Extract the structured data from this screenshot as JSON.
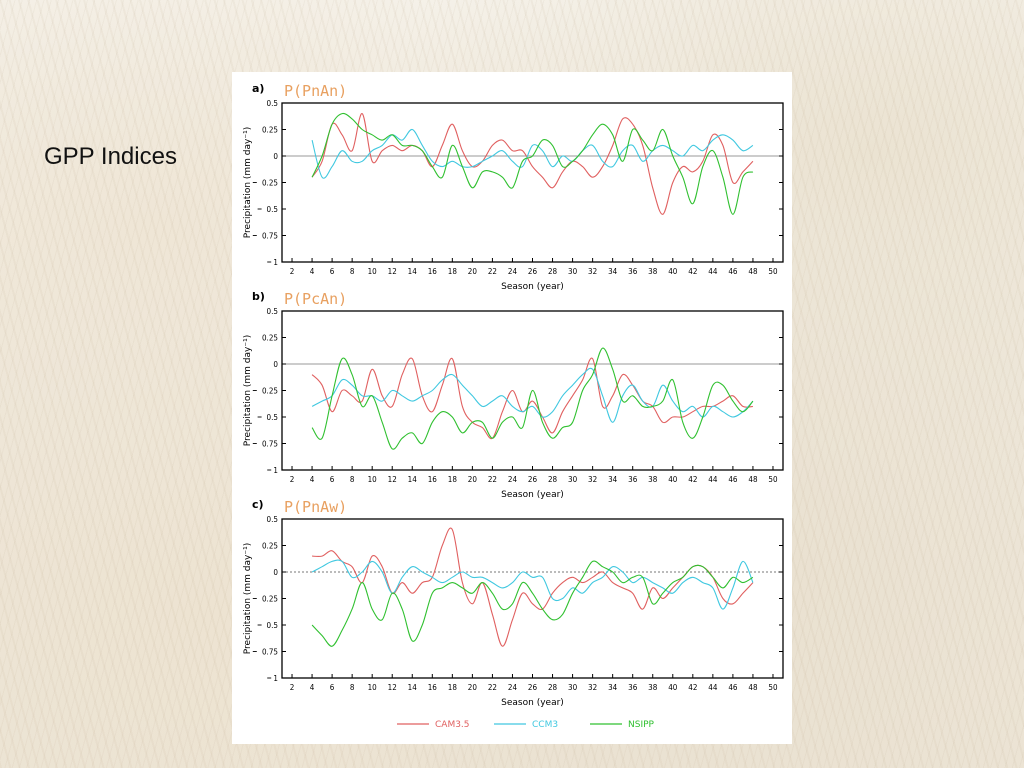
{
  "slide": {
    "title": "GPP Indices"
  },
  "colors": {
    "CAM3.5": "#e06060",
    "CCM3": "#40c8e0",
    "NSIPP": "#30c030",
    "panel_title": "#e8a060"
  },
  "chart_data": [
    {
      "type": "line",
      "panel_label": "a)",
      "title": "P(PnAn)",
      "xlabel": "Season (year)",
      "ylabel": "Precipitation (mm day⁻¹)",
      "xlim": [
        1,
        51
      ],
      "ylim": [
        -1,
        0.5
      ],
      "xticks": [
        2,
        4,
        6,
        8,
        10,
        12,
        14,
        16,
        18,
        20,
        22,
        24,
        26,
        28,
        30,
        32,
        34,
        36,
        38,
        40,
        42,
        44,
        46,
        48,
        50
      ],
      "yticks": [
        0.5,
        0.25,
        0,
        -0.25,
        -0.5,
        -0.75,
        -1
      ],
      "ytick_labels": [
        "0.5",
        "0.25",
        "0",
        "0.25",
        "0.5",
        "0.75",
        "1"
      ],
      "zero_line": "solid",
      "x": [
        4,
        5,
        6,
        7,
        8,
        9,
        10,
        11,
        12,
        13,
        14,
        15,
        16,
        17,
        18,
        19,
        20,
        21,
        22,
        23,
        24,
        25,
        26,
        27,
        28,
        29,
        30,
        31,
        32,
        33,
        34,
        35,
        36,
        37,
        38,
        39,
        40,
        41,
        42,
        43,
        44,
        45,
        46,
        47,
        48
      ],
      "series": [
        {
          "name": "CAM3.5",
          "values": [
            -0.2,
            -0.05,
            0.3,
            0.2,
            0.05,
            0.4,
            -0.05,
            0.05,
            0.1,
            0.05,
            0.1,
            0.05,
            -0.1,
            0.1,
            0.3,
            0.05,
            -0.1,
            -0.05,
            0.1,
            0.15,
            0.05,
            0.05,
            -0.1,
            -0.2,
            -0.3,
            -0.15,
            -0.05,
            -0.1,
            -0.2,
            -0.1,
            0.1,
            0.35,
            0.3,
            0.1,
            -0.3,
            -0.55,
            -0.25,
            -0.1,
            -0.15,
            -0.05,
            0.2,
            0.1,
            -0.25,
            -0.15,
            -0.05
          ]
        },
        {
          "name": "CCM3",
          "values": [
            0.15,
            -0.2,
            -0.1,
            0.05,
            -0.05,
            -0.05,
            0.05,
            0.1,
            0.2,
            0.15,
            0.25,
            0.1,
            -0.05,
            -0.1,
            -0.05,
            -0.1,
            -0.1,
            -0.05,
            0.0,
            0.05,
            -0.05,
            -0.1,
            0.1,
            0.05,
            -0.1,
            0.0,
            -0.05,
            0.05,
            0.1,
            -0.05,
            -0.1,
            0.05,
            0.1,
            -0.05,
            0.05,
            0.1,
            0.05,
            0.0,
            0.1,
            0.05,
            0.15,
            0.2,
            0.15,
            0.05,
            0.1
          ]
        },
        {
          "name": "NSIPP",
          "values": [
            -0.2,
            0.0,
            0.3,
            0.4,
            0.35,
            0.25,
            0.2,
            0.15,
            0.2,
            0.1,
            0.1,
            0.05,
            -0.1,
            -0.2,
            0.1,
            -0.1,
            -0.3,
            -0.15,
            -0.15,
            -0.2,
            -0.3,
            -0.05,
            0.0,
            0.15,
            0.1,
            -0.1,
            -0.05,
            0.05,
            0.2,
            0.3,
            0.2,
            -0.05,
            0.25,
            0.15,
            0.05,
            0.25,
            0.0,
            -0.2,
            -0.45,
            -0.1,
            0.05,
            -0.2,
            -0.55,
            -0.2,
            -0.15
          ]
        }
      ]
    },
    {
      "type": "line",
      "panel_label": "b)",
      "title": "P(PcAn)",
      "xlabel": "Season (year)",
      "ylabel": "Precipitation (mm day⁻¹)",
      "xlim": [
        1,
        51
      ],
      "ylim": [
        -1,
        0.5
      ],
      "xticks": [
        2,
        4,
        6,
        8,
        10,
        12,
        14,
        16,
        18,
        20,
        22,
        24,
        26,
        28,
        30,
        32,
        34,
        36,
        38,
        40,
        42,
        44,
        46,
        48,
        50
      ],
      "yticks": [
        0.5,
        0.25,
        0,
        -0.25,
        -0.5,
        -0.75,
        -1
      ],
      "ytick_labels": [
        "0.5",
        "0.25",
        "0",
        "0.25",
        "0.5",
        "0.75",
        "1"
      ],
      "zero_line": "solid",
      "x": [
        4,
        5,
        6,
        7,
        8,
        9,
        10,
        11,
        12,
        13,
        14,
        15,
        16,
        17,
        18,
        19,
        20,
        21,
        22,
        23,
        24,
        25,
        26,
        27,
        28,
        29,
        30,
        31,
        32,
        33,
        34,
        35,
        36,
        37,
        38,
        39,
        40,
        41,
        42,
        43,
        44,
        45,
        46,
        47,
        48
      ],
      "series": [
        {
          "name": "CAM3.5",
          "values": [
            -0.1,
            -0.2,
            -0.45,
            -0.25,
            -0.3,
            -0.35,
            -0.05,
            -0.3,
            -0.4,
            -0.1,
            0.05,
            -0.3,
            -0.45,
            -0.2,
            0.05,
            -0.4,
            -0.55,
            -0.6,
            -0.7,
            -0.45,
            -0.25,
            -0.45,
            -0.35,
            -0.5,
            -0.65,
            -0.45,
            -0.3,
            -0.15,
            0.05,
            -0.4,
            -0.3,
            -0.1,
            -0.2,
            -0.35,
            -0.4,
            -0.55,
            -0.5,
            -0.5,
            -0.45,
            -0.4,
            -0.4,
            -0.35,
            -0.3,
            -0.4,
            -0.4
          ]
        },
        {
          "name": "CCM3",
          "values": [
            -0.4,
            -0.35,
            -0.3,
            -0.15,
            -0.2,
            -0.3,
            -0.3,
            -0.35,
            -0.25,
            -0.3,
            -0.35,
            -0.3,
            -0.25,
            -0.15,
            -0.1,
            -0.2,
            -0.3,
            -0.4,
            -0.35,
            -0.3,
            -0.4,
            -0.45,
            -0.4,
            -0.5,
            -0.45,
            -0.3,
            -0.2,
            -0.1,
            -0.05,
            -0.3,
            -0.55,
            -0.3,
            -0.2,
            -0.35,
            -0.4,
            -0.2,
            -0.35,
            -0.45,
            -0.4,
            -0.5,
            -0.4,
            -0.45,
            -0.5,
            -0.45,
            -0.35
          ]
        },
        {
          "name": "NSIPP",
          "values": [
            -0.6,
            -0.7,
            -0.3,
            0.05,
            -0.1,
            -0.4,
            -0.3,
            -0.55,
            -0.8,
            -0.7,
            -0.65,
            -0.75,
            -0.55,
            -0.45,
            -0.5,
            -0.65,
            -0.55,
            -0.55,
            -0.7,
            -0.55,
            -0.5,
            -0.6,
            -0.25,
            -0.55,
            -0.7,
            -0.6,
            -0.55,
            -0.25,
            -0.1,
            0.15,
            -0.05,
            -0.35,
            -0.3,
            -0.4,
            -0.4,
            -0.35,
            -0.15,
            -0.55,
            -0.7,
            -0.5,
            -0.2,
            -0.2,
            -0.35,
            -0.45,
            -0.35
          ]
        }
      ]
    },
    {
      "type": "line",
      "panel_label": "c)",
      "title": "P(PnAw)",
      "xlabel": "Season (year)",
      "ylabel": "Precipitation (mm day⁻¹)",
      "xlim": [
        1,
        51
      ],
      "ylim": [
        -1,
        0.5
      ],
      "xticks": [
        2,
        4,
        6,
        8,
        10,
        12,
        14,
        16,
        18,
        20,
        22,
        24,
        26,
        28,
        30,
        32,
        34,
        36,
        38,
        40,
        42,
        44,
        46,
        48,
        50
      ],
      "yticks": [
        0.5,
        0.25,
        0,
        -0.25,
        -0.5,
        -0.75,
        -1
      ],
      "ytick_labels": [
        "0.5",
        "0.25",
        "0",
        "0.25",
        "0.5",
        "0.75",
        "1"
      ],
      "zero_line": "dashed",
      "x": [
        4,
        5,
        6,
        7,
        8,
        9,
        10,
        11,
        12,
        13,
        14,
        15,
        16,
        17,
        18,
        19,
        20,
        21,
        22,
        23,
        24,
        25,
        26,
        27,
        28,
        29,
        30,
        31,
        32,
        33,
        34,
        35,
        36,
        37,
        38,
        39,
        40,
        41,
        42,
        43,
        44,
        45,
        46,
        47,
        48
      ],
      "series": [
        {
          "name": "CAM3.5",
          "values": [
            0.15,
            0.15,
            0.2,
            0.1,
            0.05,
            -0.1,
            0.15,
            0.05,
            -0.2,
            -0.1,
            -0.2,
            -0.1,
            -0.05,
            0.25,
            0.4,
            -0.1,
            -0.3,
            -0.1,
            -0.4,
            -0.7,
            -0.45,
            -0.2,
            -0.3,
            -0.35,
            -0.2,
            -0.1,
            -0.05,
            -0.1,
            -0.05,
            0.0,
            -0.1,
            -0.15,
            -0.2,
            -0.35,
            -0.15,
            -0.25,
            -0.15,
            -0.05,
            0.05,
            0.05,
            -0.05,
            -0.25,
            -0.3,
            -0.2,
            -0.1
          ]
        },
        {
          "name": "CCM3",
          "values": [
            0.0,
            0.05,
            0.1,
            0.1,
            -0.05,
            0.0,
            0.1,
            0.0,
            -0.2,
            -0.05,
            0.05,
            0.0,
            -0.05,
            -0.1,
            -0.05,
            0.0,
            -0.05,
            -0.05,
            -0.1,
            -0.15,
            -0.1,
            0.0,
            -0.05,
            -0.05,
            -0.25,
            -0.25,
            -0.15,
            -0.2,
            -0.1,
            -0.05,
            0.05,
            0.0,
            -0.1,
            -0.05,
            -0.1,
            -0.15,
            -0.2,
            -0.1,
            -0.05,
            -0.1,
            -0.15,
            -0.35,
            -0.15,
            0.1,
            -0.1
          ]
        },
        {
          "name": "NSIPP",
          "values": [
            -0.5,
            -0.6,
            -0.7,
            -0.55,
            -0.35,
            -0.1,
            -0.35,
            -0.45,
            -0.2,
            -0.35,
            -0.65,
            -0.5,
            -0.2,
            -0.15,
            -0.1,
            -0.15,
            -0.2,
            -0.1,
            -0.2,
            -0.35,
            -0.3,
            -0.1,
            -0.2,
            -0.35,
            -0.45,
            -0.4,
            -0.2,
            -0.05,
            0.1,
            0.05,
            0.0,
            -0.1,
            -0.05,
            -0.05,
            -0.3,
            -0.2,
            -0.1,
            -0.05,
            0.05,
            0.05,
            -0.05,
            -0.15,
            -0.05,
            -0.1,
            -0.05
          ]
        }
      ]
    }
  ],
  "legend": [
    {
      "name": "CAM3.5",
      "color": "#e06060"
    },
    {
      "name": "CCM3",
      "color": "#40c8e0"
    },
    {
      "name": "NSIPP",
      "color": "#30c030"
    }
  ]
}
